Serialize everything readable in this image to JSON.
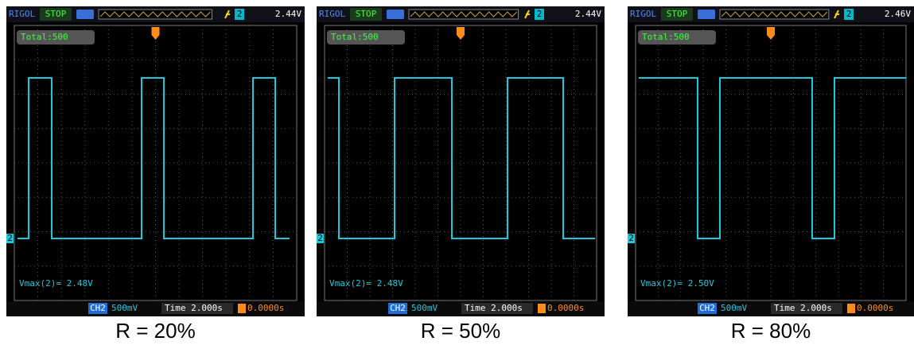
{
  "panels": [
    {
      "brand": "RIGOL",
      "status": "STOP",
      "trigger_source": "2",
      "trigger_level": "2.44V",
      "total": "Total:500",
      "channel_marker": "2",
      "measurement": "Vmax(2)= 2.48V",
      "channel": "CH2",
      "volts_per_div": "500mV",
      "timebase": "Time 2.000s",
      "trigger_offset": "0.0000s",
      "caption": "R = 20%"
    },
    {
      "brand": "RIGOL",
      "status": "STOP",
      "trigger_source": "2",
      "trigger_level": "2.44V",
      "total": "Total:500",
      "channel_marker": "2",
      "measurement": "Vmax(2)= 2.48V",
      "channel": "CH2",
      "volts_per_div": "500mV",
      "timebase": "Time 2.000s",
      "trigger_offset": "0.0000s",
      "caption": "R = 50%"
    },
    {
      "brand": "RIGOL",
      "status": "STOP",
      "trigger_source": "2",
      "trigger_level": "2.46V",
      "total": "Total:500",
      "channel_marker": "2",
      "measurement": "Vmax(2)= 2.50V",
      "channel": "CH2",
      "volts_per_div": "500mV",
      "timebase": "Time 2.000s",
      "trigger_offset": "0.0000s",
      "caption": "R = 80%"
    }
  ]
}
